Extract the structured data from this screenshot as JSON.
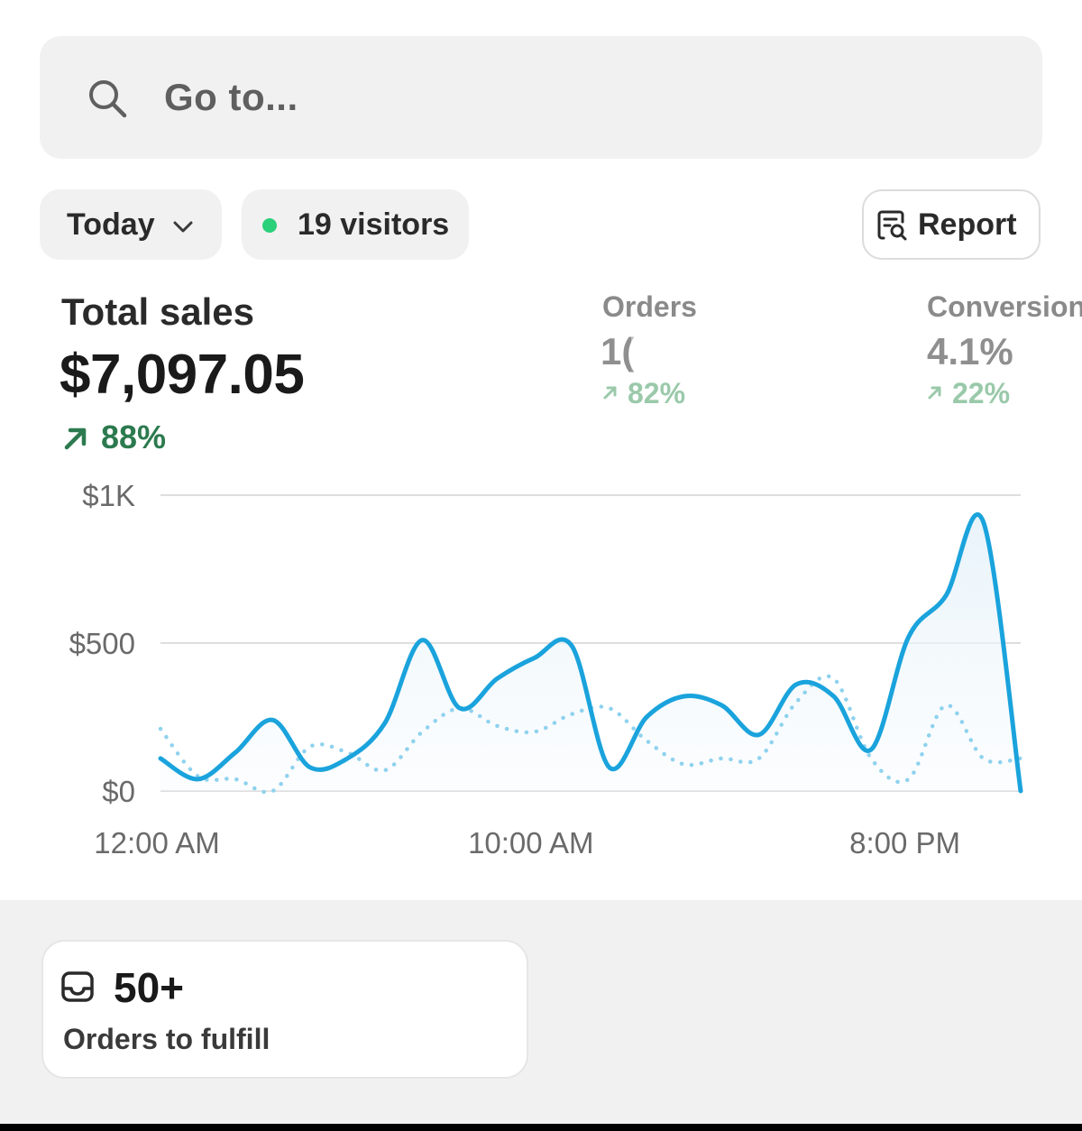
{
  "search": {
    "placeholder": "Go to...",
    "icon": "search-icon"
  },
  "filters": {
    "date_range": {
      "label": "Today",
      "icon": "chevron-down-icon"
    },
    "live_visitors": {
      "label": "19 visitors",
      "dot_color": "#2bd07a"
    }
  },
  "report_button": {
    "label": "Report",
    "icon": "report-search-icon"
  },
  "metrics": {
    "total_sales": {
      "title": "Total sales",
      "value": "$7,097.05",
      "change": "88%",
      "trend": "up",
      "color": "#2c7a4f"
    },
    "orders": {
      "title": "Orders",
      "value": "1(",
      "change": "82%",
      "trend": "up"
    },
    "conversion": {
      "title": "Conversion",
      "value": "4.1%",
      "change": "22%",
      "trend": "up"
    }
  },
  "chart_data": {
    "type": "line",
    "title": "",
    "xlabel": "",
    "ylabel": "",
    "ylim": [
      0,
      1000
    ],
    "y_ticks": [
      "$0",
      "$500",
      "$1K"
    ],
    "y_tick_values": [
      0,
      500,
      1000
    ],
    "x_ticks": [
      "12:00 AM",
      "10:00 AM",
      "8:00 PM"
    ],
    "x_tick_hours": [
      0,
      10,
      20
    ],
    "grid": true,
    "series": [
      {
        "style": "solid",
        "color": "#1aa3dc",
        "x": [
          0,
          1,
          2,
          3,
          4,
          5,
          6,
          7,
          8,
          9,
          10,
          11,
          12,
          13,
          14,
          15,
          16,
          17,
          18,
          19,
          20,
          21,
          22,
          23
        ],
        "values": [
          110,
          40,
          130,
          240,
          80,
          110,
          230,
          510,
          280,
          380,
          450,
          490,
          80,
          250,
          320,
          290,
          190,
          360,
          320,
          140,
          520,
          660,
          910,
          0
        ]
      },
      {
        "style": "dotted",
        "color": "#8fd2ee",
        "x": [
          0,
          1,
          2,
          3,
          4,
          5,
          6,
          7,
          8,
          9,
          10,
          11,
          12,
          13,
          14,
          15,
          16,
          17,
          18,
          19,
          20,
          21,
          22,
          23
        ],
        "values": [
          210,
          50,
          40,
          0,
          150,
          130,
          70,
          200,
          280,
          220,
          200,
          260,
          280,
          170,
          90,
          110,
          110,
          300,
          380,
          110,
          40,
          290,
          110,
          110
        ]
      }
    ]
  },
  "fulfillment": {
    "count": "50+",
    "label": "Orders to fulfill",
    "icon": "inbox-icon"
  }
}
